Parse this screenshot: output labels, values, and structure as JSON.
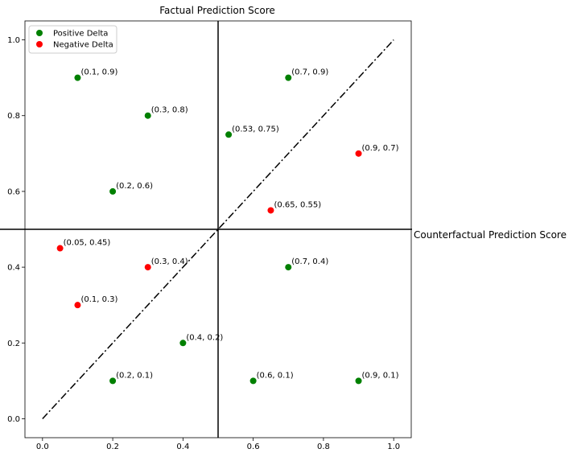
{
  "chart_data": {
    "type": "scatter",
    "title": "Factual Prediction Score",
    "xlabel": "Counterfactual Prediction Score",
    "ylabel": "",
    "xlim": [
      -0.05,
      1.05
    ],
    "ylim": [
      -0.05,
      1.05
    ],
    "xticks": [
      0.0,
      0.2,
      0.4,
      0.6,
      0.8,
      1.0
    ],
    "yticks": [
      0.0,
      0.2,
      0.4,
      0.6,
      0.8,
      1.0
    ],
    "xtick_labels": [
      "0.0",
      "0.2",
      "0.4",
      "0.6",
      "0.8",
      "1.0"
    ],
    "ytick_labels": [
      "0.0",
      "0.2",
      "0.4",
      "0.6",
      "0.8",
      "1.0"
    ],
    "reference_lines": {
      "vertical_x": 0.5,
      "horizontal_y": 0.5,
      "diagonal": [
        [
          0,
          0
        ],
        [
          1,
          1
        ]
      ]
    },
    "legend_position": "top-left",
    "series": [
      {
        "name": "Positive Delta",
        "color": "#008000",
        "points": [
          {
            "x": 0.1,
            "y": 0.9,
            "label": "(0.1, 0.9)"
          },
          {
            "x": 0.3,
            "y": 0.8,
            "label": "(0.3, 0.8)"
          },
          {
            "x": 0.2,
            "y": 0.6,
            "label": "(0.2, 0.6)"
          },
          {
            "x": 0.7,
            "y": 0.9,
            "label": "(0.7, 0.9)"
          },
          {
            "x": 0.53,
            "y": 0.75,
            "label": "(0.53, 0.75)"
          },
          {
            "x": 0.7,
            "y": 0.4,
            "label": "(0.7, 0.4)"
          },
          {
            "x": 0.4,
            "y": 0.2,
            "label": "(0.4, 0.2)"
          },
          {
            "x": 0.2,
            "y": 0.1,
            "label": "(0.2, 0.1)"
          },
          {
            "x": 0.6,
            "y": 0.1,
            "label": "(0.6, 0.1)"
          },
          {
            "x": 0.9,
            "y": 0.1,
            "label": "(0.9, 0.1)"
          }
        ]
      },
      {
        "name": "Negative Delta",
        "color": "#ff0000",
        "points": [
          {
            "x": 0.9,
            "y": 0.7,
            "label": "(0.9, 0.7)"
          },
          {
            "x": 0.65,
            "y": 0.55,
            "label": "(0.65, 0.55)"
          },
          {
            "x": 0.05,
            "y": 0.45,
            "label": "(0.05, 0.45)"
          },
          {
            "x": 0.3,
            "y": 0.4,
            "label": "(0.3, 0.4)"
          },
          {
            "x": 0.1,
            "y": 0.3,
            "label": "(0.1, 0.3)"
          }
        ]
      }
    ]
  }
}
